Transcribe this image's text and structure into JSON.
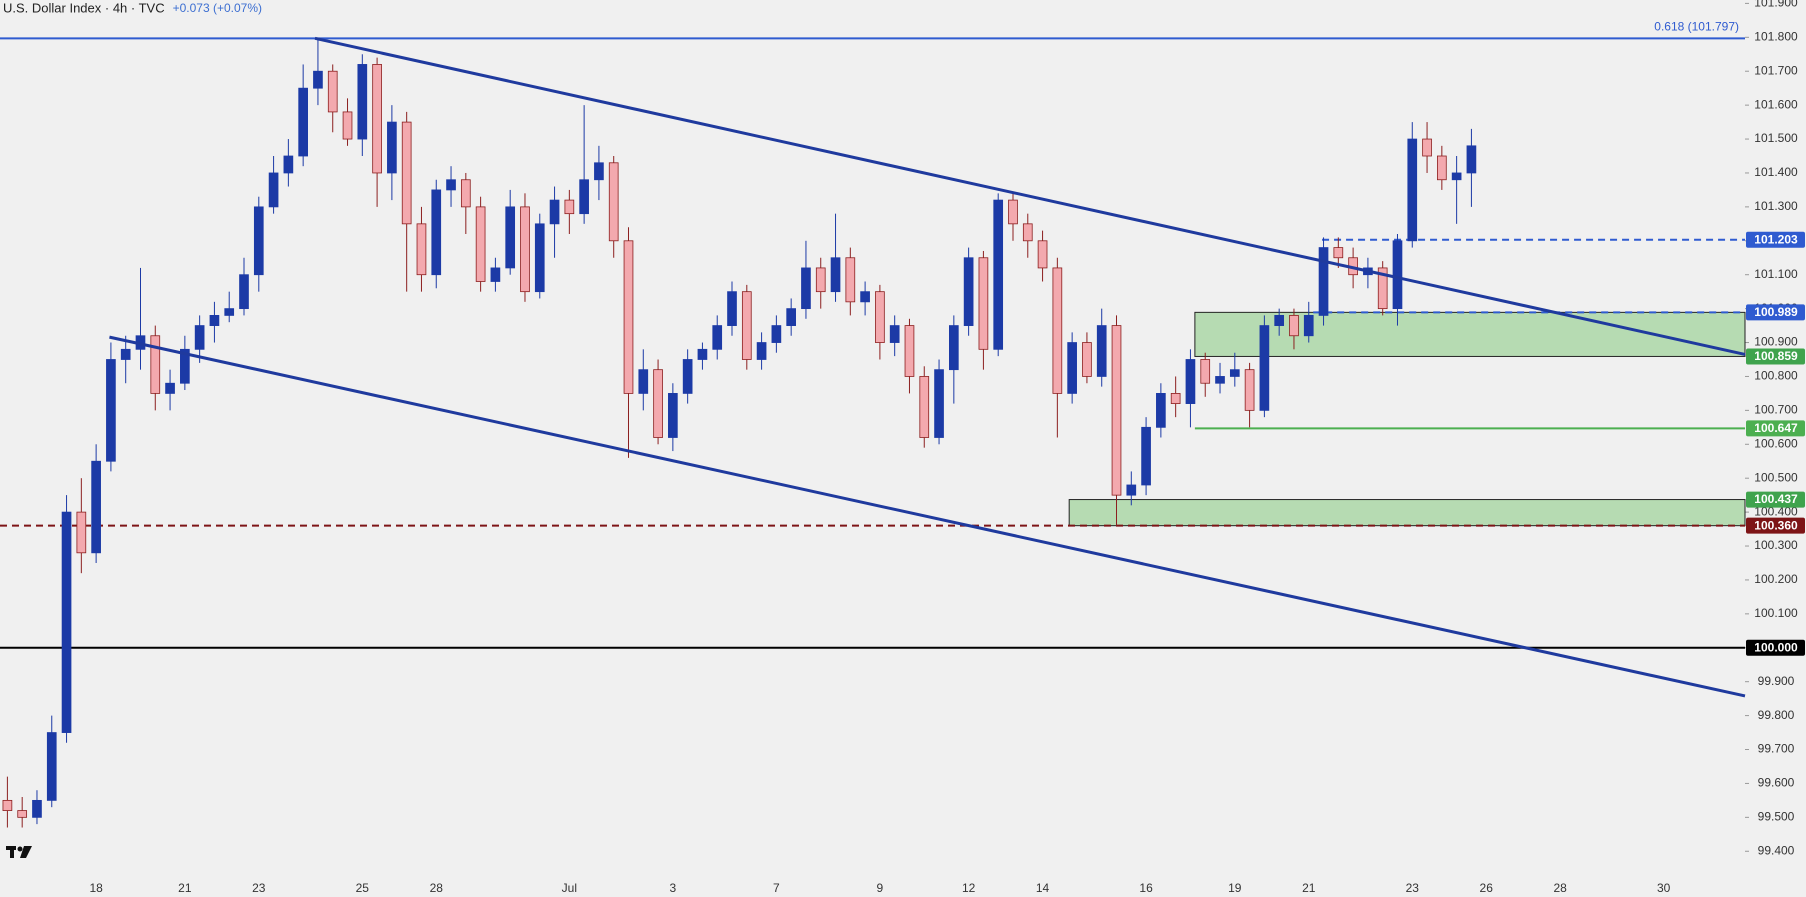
{
  "chart_data": {
    "type": "candlestick",
    "title": "U.S. Dollar Index · 4h · TVC",
    "change": "+0.073 (+0.07%)",
    "categories": [
      null,
      null,
      null,
      null,
      null,
      null,
      "18",
      null,
      null,
      null,
      null,
      null,
      "21",
      null,
      null,
      null,
      null,
      "23",
      null,
      null,
      null,
      null,
      null,
      null,
      "25",
      null,
      null,
      null,
      null,
      "28",
      null,
      null,
      null,
      null,
      null,
      null,
      null,
      null,
      "Jul",
      null,
      null,
      null,
      null,
      null,
      null,
      "3",
      null,
      null,
      null,
      null,
      null,
      null,
      "7",
      null,
      null,
      null,
      null,
      null,
      null,
      "9",
      null,
      null,
      null,
      null,
      null,
      "12",
      null,
      null,
      null,
      null,
      "14",
      null,
      null,
      null,
      null,
      null,
      null,
      "16",
      null,
      null,
      null,
      null,
      null,
      "19",
      null,
      null,
      null,
      null,
      "21",
      null,
      null,
      null,
      null,
      null,
      null,
      "23",
      null,
      null,
      null,
      null,
      "26",
      null,
      null,
      null,
      null,
      "28",
      null,
      null,
      null,
      null,
      null,
      null,
      "30",
      null,
      null,
      null,
      null,
      null
    ],
    "open": [
      99.55,
      99.52,
      99.5,
      99.55,
      99.75,
      100.4,
      100.28,
      100.55,
      100.85,
      100.88,
      100.92,
      100.75,
      100.78,
      100.88,
      100.95,
      100.98,
      101.0,
      101.1,
      101.3,
      101.4,
      101.45,
      101.65,
      101.7,
      101.58,
      101.5,
      101.72,
      101.4,
      101.55,
      101.25,
      101.1,
      101.35,
      101.38,
      101.3,
      101.08,
      101.12,
      101.3,
      101.05,
      101.25,
      101.32,
      101.28,
      101.38,
      101.43,
      101.2,
      100.75,
      100.82,
      100.62,
      100.75,
      100.85,
      100.88,
      100.95,
      101.05,
      100.85,
      100.9,
      100.95,
      101.0,
      101.12,
      101.05,
      101.15,
      101.02,
      101.05,
      100.9,
      100.95,
      100.8,
      100.62,
      100.82,
      100.95,
      101.15,
      100.88,
      101.32,
      101.25,
      101.2,
      101.12,
      100.75,
      100.9,
      100.8,
      100.95,
      100.45,
      100.48,
      100.65,
      100.75,
      100.72,
      100.85,
      100.78,
      100.8,
      100.82,
      100.7,
      100.95,
      100.98,
      100.92,
      100.98,
      101.18,
      101.15,
      101.1,
      101.12,
      101.0,
      101.2,
      101.5,
      101.45,
      101.38,
      101.4,
      null,
      null,
      null,
      null,
      null,
      null,
      null,
      null,
      null,
      null,
      null,
      null,
      null,
      null,
      null,
      null,
      null,
      null
    ],
    "high": [
      99.62,
      99.56,
      99.58,
      99.8,
      100.45,
      100.5,
      100.6,
      100.9,
      100.92,
      101.12,
      100.95,
      100.82,
      100.92,
      100.98,
      101.02,
      101.05,
      101.15,
      101.33,
      101.45,
      101.5,
      101.72,
      101.797,
      101.72,
      101.62,
      101.75,
      101.74,
      101.6,
      101.58,
      101.3,
      101.38,
      101.42,
      101.4,
      101.33,
      101.15,
      101.35,
      101.34,
      101.28,
      101.36,
      101.35,
      101.6,
      101.48,
      101.45,
      101.24,
      100.88,
      100.85,
      100.78,
      100.88,
      100.9,
      100.98,
      101.08,
      101.07,
      100.93,
      100.98,
      101.03,
      101.2,
      101.15,
      101.28,
      101.18,
      101.08,
      101.07,
      100.98,
      100.97,
      100.83,
      100.85,
      100.98,
      101.18,
      101.17,
      101.34,
      101.34,
      101.28,
      101.23,
      101.15,
      100.93,
      100.93,
      101.0,
      100.98,
      100.52,
      100.68,
      100.78,
      100.8,
      100.88,
      100.87,
      100.84,
      100.87,
      100.84,
      100.98,
      101.0,
      101.0,
      101.02,
      101.21,
      101.21,
      101.18,
      101.15,
      101.14,
      101.22,
      101.55,
      101.55,
      101.48,
      101.45,
      101.53,
      null,
      null,
      null,
      null,
      null,
      null,
      null,
      null,
      null,
      null,
      null,
      null,
      null,
      null,
      null,
      null,
      null,
      null
    ],
    "low": [
      99.47,
      99.47,
      99.48,
      99.53,
      99.72,
      100.22,
      100.25,
      100.52,
      100.78,
      100.82,
      100.7,
      100.7,
      100.76,
      100.84,
      100.9,
      100.96,
      100.98,
      101.05,
      101.28,
      101.36,
      101.42,
      101.6,
      101.52,
      101.48,
      101.45,
      101.3,
      101.32,
      101.05,
      101.05,
      101.06,
      101.3,
      101.22,
      101.05,
      101.05,
      101.1,
      101.02,
      101.03,
      101.15,
      101.22,
      101.25,
      101.32,
      101.15,
      100.56,
      100.7,
      100.6,
      100.58,
      100.72,
      100.82,
      100.85,
      100.92,
      100.82,
      100.82,
      100.87,
      100.92,
      100.97,
      101.0,
      101.02,
      100.98,
      100.98,
      100.85,
      100.86,
      100.75,
      100.59,
      100.6,
      100.72,
      100.92,
      100.82,
      100.86,
      101.2,
      101.15,
      101.08,
      100.62,
      100.72,
      100.78,
      100.77,
      100.36,
      100.42,
      100.45,
      100.62,
      100.68,
      100.65,
      100.74,
      100.75,
      100.77,
      100.65,
      100.68,
      100.92,
      100.88,
      100.9,
      100.95,
      101.12,
      101.06,
      101.06,
      100.98,
      100.95,
      101.18,
      101.4,
      101.35,
      101.25,
      101.3,
      null,
      null,
      null,
      null,
      null,
      null,
      null,
      null,
      null,
      null,
      null,
      null,
      null,
      null,
      null,
      null,
      null,
      null
    ],
    "close": [
      99.52,
      99.5,
      99.55,
      99.75,
      100.4,
      100.28,
      100.55,
      100.85,
      100.88,
      100.92,
      100.75,
      100.78,
      100.88,
      100.95,
      100.98,
      101.0,
      101.1,
      101.3,
      101.4,
      101.45,
      101.65,
      101.7,
      101.58,
      101.5,
      101.72,
      101.4,
      101.55,
      101.25,
      101.1,
      101.35,
      101.38,
      101.3,
      101.08,
      101.12,
      101.3,
      101.05,
      101.25,
      101.32,
      101.28,
      101.38,
      101.43,
      101.2,
      100.75,
      100.82,
      100.62,
      100.75,
      100.85,
      100.88,
      100.95,
      101.05,
      100.85,
      100.9,
      100.95,
      101.0,
      101.12,
      101.05,
      101.15,
      101.02,
      101.05,
      100.9,
      100.95,
      100.8,
      100.62,
      100.82,
      100.95,
      101.15,
      100.88,
      101.32,
      101.25,
      101.2,
      101.12,
      100.75,
      100.9,
      100.8,
      100.95,
      100.45,
      100.48,
      100.65,
      100.75,
      100.72,
      100.85,
      100.78,
      100.8,
      100.82,
      100.7,
      100.95,
      100.98,
      100.92,
      100.98,
      101.18,
      101.15,
      101.1,
      101.12,
      101.0,
      101.2,
      101.5,
      101.45,
      101.38,
      101.4,
      101.48,
      null,
      null,
      null,
      null,
      null,
      null,
      null,
      null,
      null,
      null,
      null,
      null,
      null,
      null,
      null,
      null,
      null,
      null
    ],
    "up_color": "#1c3aa6",
    "down_color": "#f3a9ae",
    "down_edge": "#8c1f1f",
    "ylim": [
      99.33,
      101.91
    ],
    "yticks": [
      {
        "value": 99.4,
        "label": "99.400"
      },
      {
        "value": 99.5,
        "label": "99.500"
      },
      {
        "value": 99.6,
        "label": "99.600"
      },
      {
        "value": 99.7,
        "label": "99.700"
      },
      {
        "value": 99.8,
        "label": "99.800"
      },
      {
        "value": 99.9,
        "label": "99.900"
      },
      {
        "value": 100.0,
        "label": "100.000"
      },
      {
        "value": 100.1,
        "label": "100.100"
      },
      {
        "value": 100.2,
        "label": "100.200"
      },
      {
        "value": 100.3,
        "label": "100.300"
      },
      {
        "value": 100.4,
        "label": "100.400"
      },
      {
        "value": 100.5,
        "label": "100.500"
      },
      {
        "value": 100.6,
        "label": "100.600"
      },
      {
        "value": 100.7,
        "label": "100.700"
      },
      {
        "value": 100.8,
        "label": "100.800"
      },
      {
        "value": 100.9,
        "label": "100.900"
      },
      {
        "value": 101.0,
        "label": "101.000"
      },
      {
        "value": 101.1,
        "label": "101.100"
      },
      {
        "value": 101.2,
        "label": "101.200"
      },
      {
        "value": 101.3,
        "label": "101.300"
      },
      {
        "value": 101.4,
        "label": "101.400"
      },
      {
        "value": 101.5,
        "label": "101.500"
      },
      {
        "value": 101.6,
        "label": "101.600"
      },
      {
        "value": 101.7,
        "label": "101.700"
      },
      {
        "value": 101.8,
        "label": "101.800"
      },
      {
        "value": 101.9,
        "label": "101.900"
      }
    ],
    "zones": [
      {
        "low": 100.859,
        "high": 100.989,
        "from": 80.8,
        "color": "#b6dbb2"
      },
      {
        "low": 100.36,
        "high": 100.437,
        "from": 72.3,
        "color": "#b6dbb2"
      }
    ],
    "levels": [
      {
        "value": 101.797,
        "text": "0.618 (101.797)",
        "color": "#2f5bd0",
        "style": "solid",
        "from": 0,
        "tag": false
      },
      {
        "value": 101.203,
        "color": "#2f5bd0",
        "style": "dashed",
        "from": 89.4,
        "tag": true
      },
      {
        "value": 100.989,
        "color": "#2f5bd0",
        "style": "dashed",
        "from": 88.8,
        "tag": true
      },
      {
        "value": 100.859,
        "color": "#3fa34d",
        "style": "none",
        "from": 80.8,
        "tag": true
      },
      {
        "value": 100.647,
        "color": "#4caf50",
        "style": "solid",
        "from": 80.8,
        "tag": true
      },
      {
        "value": 100.437,
        "color": "#3fa34d",
        "style": "none",
        "from": 72.3,
        "tag": true
      },
      {
        "value": 100.36,
        "value_label": "100.360",
        "color": "#7d1416",
        "style": "dashed",
        "from": 0,
        "tag": true
      },
      {
        "value": 100.0,
        "value_label": "100.000",
        "color": "#000000",
        "style": "solid",
        "from": 0,
        "tag": true
      }
    ],
    "trendlines": [
      {
        "x": [
          21.3,
          118
        ],
        "y": [
          101.797,
          100.865
        ],
        "color": "#1f3a9e"
      },
      {
        "x": [
          7.4,
          118
        ],
        "y": [
          100.916,
          99.858
        ],
        "color": "#1f3a9e"
      }
    ]
  }
}
